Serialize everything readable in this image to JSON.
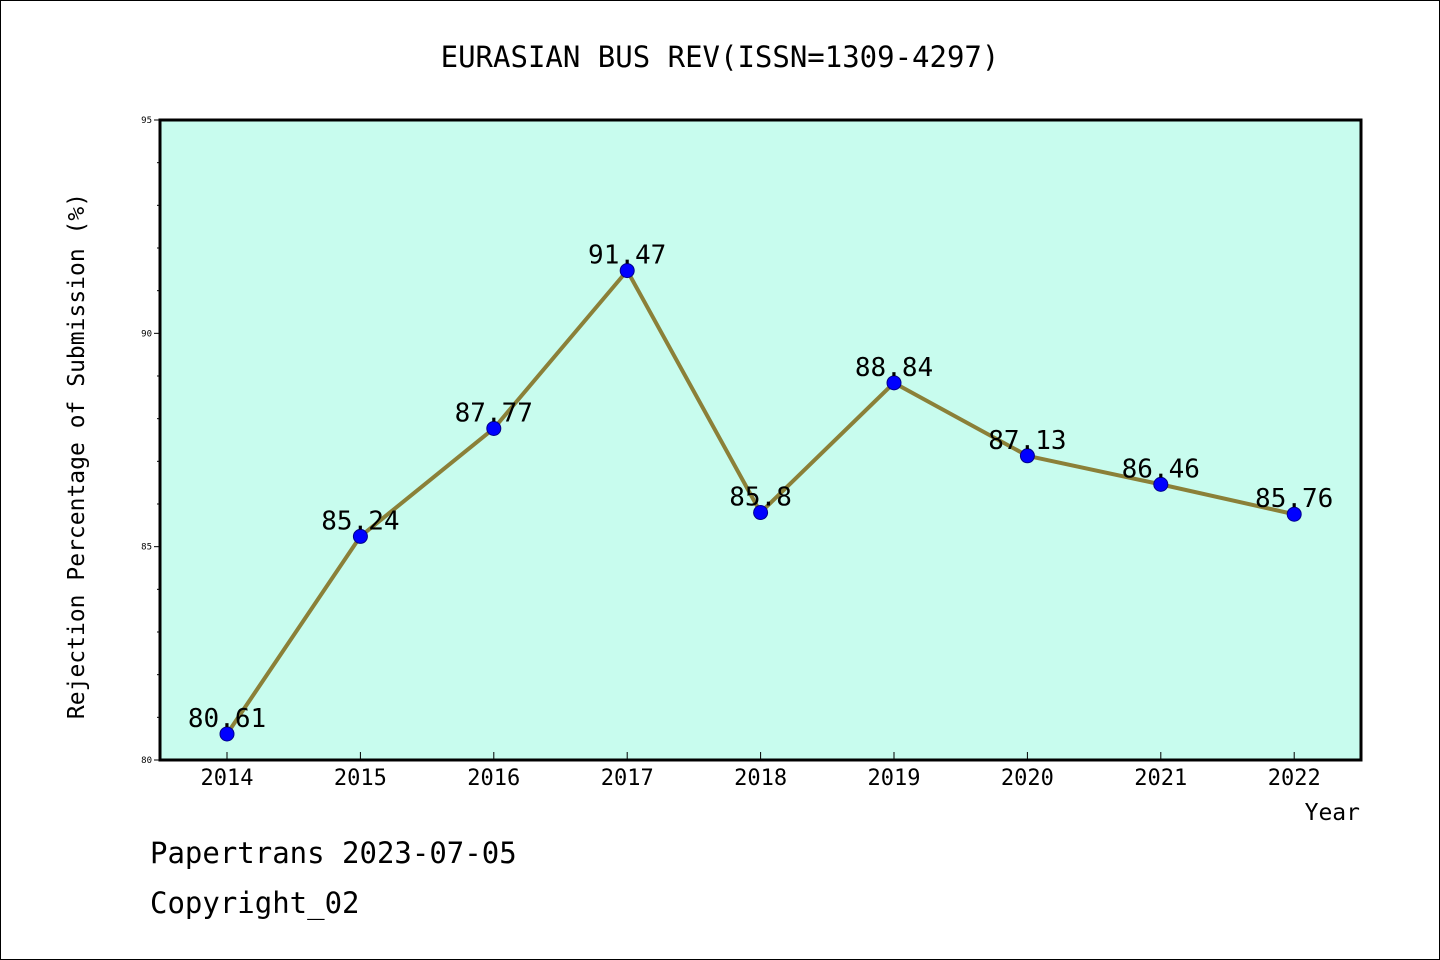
{
  "chart_data": {
    "type": "line",
    "title": "EURASIAN BUS REV(ISSN=1309-4297)",
    "xlabel": "Year",
    "ylabel": "Rejection Percentage of Submission (%)",
    "categories": [
      "2014",
      "2015",
      "2016",
      "2017",
      "2018",
      "2019",
      "2020",
      "2021",
      "2022"
    ],
    "values": [
      80.61,
      85.24,
      87.77,
      91.47,
      85.8,
      88.84,
      87.13,
      86.46,
      85.76
    ],
    "data_labels": [
      "80.61",
      "85.24",
      "87.77",
      "91.47",
      "85.8",
      "88.84",
      "87.13",
      "86.46",
      "85.76"
    ],
    "ylim": [
      80,
      95
    ],
    "yticks": [
      "80",
      "85",
      "90",
      "95"
    ],
    "grid": false,
    "colors": {
      "plot_background": "#c8fcee",
      "line": "#8b8038",
      "marker": "#0000ff"
    }
  },
  "footer": {
    "line1": "Papertrans 2023-07-05",
    "line2": "Copyright_02"
  }
}
